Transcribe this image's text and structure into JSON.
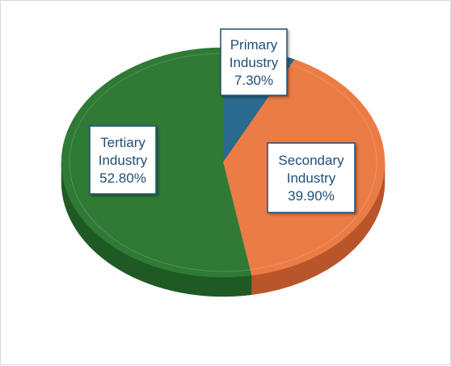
{
  "chart_data": {
    "type": "pie",
    "title": "",
    "style": "3d-oval",
    "slices": [
      {
        "name": "Primary Industry",
        "value": 7.3,
        "line1": "Primary",
        "line2": "Industry",
        "pct_label": "7.30%",
        "color": "#2a6a8e",
        "side_color": "#1c4d69"
      },
      {
        "name": "Secondary Industry",
        "value": 39.9,
        "line1": "Secondary",
        "line2": "Industry",
        "pct_label": "39.90%",
        "color": "#ec7c45",
        "side_color": "#b9552a"
      },
      {
        "name": "Tertiary Industry",
        "value": 52.8,
        "line1": "Tertiary",
        "line2": "Industry",
        "pct_label": "52.80%",
        "color": "#2f7a35",
        "side_color": "#1f5a24"
      }
    ]
  }
}
